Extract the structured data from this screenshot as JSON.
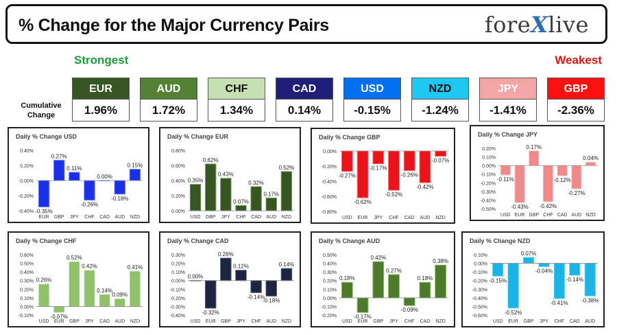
{
  "header": {
    "title": "% Change for the Major Currency Pairs",
    "logo_left": "fore",
    "logo_x": "X",
    "logo_right": "live"
  },
  "labels": {
    "strongest": "Strongest",
    "weakest": "Weakest",
    "cumulative_line1": "Cumulative",
    "cumulative_line2": "Change"
  },
  "tiles": [
    {
      "name": "EUR",
      "value": "1.96%",
      "bg": "#375623",
      "fg": "#ffffff"
    },
    {
      "name": "AUD",
      "value": "1.72%",
      "bg": "#548235",
      "fg": "#ffffff"
    },
    {
      "name": "CHF",
      "value": "1.34%",
      "bg": "#c6e0b4",
      "fg": "#111111"
    },
    {
      "name": "CAD",
      "value": "0.14%",
      "bg": "#1f1f7a",
      "fg": "#ffffff"
    },
    {
      "name": "USD",
      "value": "-0.15%",
      "bg": "#0070f0",
      "fg": "#ffffff"
    },
    {
      "name": "NZD",
      "value": "-1.24%",
      "bg": "#1fc8f0",
      "fg": "#111111"
    },
    {
      "name": "JPY",
      "value": "-1.41%",
      "bg": "#f4a6a6",
      "fg": "#ffffff"
    },
    {
      "name": "GBP",
      "value": "-2.36%",
      "bg": "#ff1010",
      "fg": "#ffffff"
    }
  ],
  "chart_data": [
    {
      "type": "bar",
      "title": "Daily % Change USD",
      "categories": [
        "EUR",
        "GBP",
        "JPY",
        "CHF",
        "CAD",
        "AUD",
        "NZD"
      ],
      "values": [
        -0.35,
        0.27,
        0.11,
        -0.26,
        0.0,
        -0.18,
        0.15
      ],
      "labels": [
        "-0.35%",
        "0.27%",
        "0.11%",
        "-0.26%",
        "0.00%",
        "-0.18%",
        "0.15%"
      ],
      "ylim": [
        -0.4,
        0.4
      ],
      "yticks": [
        "-0.40%",
        "-0.20%",
        "0.00%",
        "0.20%",
        "0.40%"
      ],
      "color": "#1a2fe8",
      "light": "#7a86ff"
    },
    {
      "type": "bar",
      "title": "Daily % Change EUR",
      "categories": [
        "USD",
        "GBP",
        "JPY",
        "CHF",
        "CAD",
        "AUD",
        "NZD"
      ],
      "values": [
        0.35,
        0.62,
        0.43,
        0.07,
        0.32,
        0.17,
        0.52
      ],
      "labels": [
        "0.35%",
        "0.62%",
        "0.43%",
        "0.07%",
        "0.32%",
        "0.17%",
        "0.52%"
      ],
      "ylim": [
        0.0,
        0.8
      ],
      "yticks": [
        "0.00%",
        "0.20%",
        "0.40%",
        "0.60%",
        "0.80%"
      ],
      "color": "#375623",
      "light": "#7fa862"
    },
    {
      "type": "bar",
      "title": "Daily % Change GBP",
      "categories": [
        "USD",
        "EUR",
        "JPY",
        "CHF",
        "CAD",
        "AUD",
        "NZD"
      ],
      "values": [
        -0.27,
        -0.62,
        -0.17,
        -0.52,
        -0.26,
        -0.42,
        -0.07
      ],
      "labels": [
        "-0.27%",
        "-0.62%",
        "-0.17%",
        "-0.52%",
        "-0.26%",
        "-0.42%",
        "-0.07%"
      ],
      "ylim": [
        -0.8,
        0.0
      ],
      "yticks": [
        "-0.80%",
        "-0.60%",
        "-0.40%",
        "-0.20%",
        "0.00%"
      ],
      "color": "#e8141a",
      "light": "#ff7a7a"
    },
    {
      "type": "bar",
      "title": "Daily % Change JPY",
      "categories": [
        "USD",
        "EUR",
        "GBP",
        "CHF",
        "CAD",
        "AUD",
        "NZD"
      ],
      "values": [
        -0.11,
        -0.43,
        0.17,
        -0.42,
        -0.12,
        -0.27,
        0.04
      ],
      "labels": [
        "-0.11%",
        "-0.43%",
        "0.17%",
        "-0.42%",
        "-0.12%",
        "-0.27%",
        "0.04%"
      ],
      "ylim": [
        -0.5,
        0.2
      ],
      "yticks": [
        "-0.50%",
        "-0.40%",
        "-0.30%",
        "-0.20%",
        "-0.10%",
        "0.00%",
        "0.10%",
        "0.20%"
      ],
      "color": "#f08a8a",
      "light": "#fcd2d2"
    },
    {
      "type": "bar",
      "title": "Daily % Change CHF",
      "categories": [
        "USD",
        "EUR",
        "GBP",
        "JPY",
        "CAD",
        "AUD",
        "NZD"
      ],
      "values": [
        0.26,
        -0.07,
        0.52,
        0.42,
        0.14,
        0.09,
        0.41
      ],
      "labels": [
        "0.26%",
        "-0.07%",
        "0.52%",
        "0.42%",
        "0.14%",
        "0.09%",
        "0.41%"
      ],
      "ylim": [
        -0.1,
        0.6
      ],
      "yticks": [
        "-0.10%",
        "0.00%",
        "0.10%",
        "0.20%",
        "0.30%",
        "0.40%",
        "0.50%",
        "0.60%"
      ],
      "color": "#8fc06a",
      "light": "#d8edc6"
    },
    {
      "type": "bar",
      "title": "Daily % Change CAD",
      "categories": [
        "USD",
        "EUR",
        "GBP",
        "JPY",
        "CHF",
        "AUD",
        "NZD"
      ],
      "values": [
        0.0,
        -0.32,
        0.26,
        0.12,
        -0.14,
        -0.18,
        0.14
      ],
      "labels": [
        "0.00%",
        "-0.32%",
        "0.26%",
        "0.12%",
        "-0.14%",
        "-0.18%",
        "0.14%"
      ],
      "ylim": [
        -0.4,
        0.3
      ],
      "yticks": [
        "-0.40%",
        "-0.30%",
        "-0.20%",
        "-0.10%",
        "0.00%",
        "0.10%",
        "0.20%",
        "0.30%"
      ],
      "color": "#1d2540",
      "light": "#55617f"
    },
    {
      "type": "bar",
      "title": "Daily % Change AUD",
      "categories": [
        "USD",
        "EUR",
        "GBP",
        "JPY",
        "CHF",
        "CAD",
        "NZD"
      ],
      "values": [
        0.18,
        -0.17,
        0.42,
        0.27,
        -0.09,
        0.18,
        0.38
      ],
      "labels": [
        "0.18%",
        "-0.17%",
        "0.42%",
        "0.27%",
        "-0.09%",
        "0.18%",
        "0.38%"
      ],
      "ylim": [
        -0.2,
        0.5
      ],
      "yticks": [
        "-0.20%",
        "-0.10%",
        "0.00%",
        "0.10%",
        "0.20%",
        "0.30%",
        "0.40%",
        "0.50%"
      ],
      "color": "#4e7a2c",
      "light": "#94be72"
    },
    {
      "type": "bar",
      "title": "Daily % Change NZD",
      "categories": [
        "USD",
        "EUR",
        "GBP",
        "JPY",
        "CHF",
        "CAD",
        "AUD"
      ],
      "values": [
        -0.15,
        -0.52,
        0.07,
        -0.04,
        -0.41,
        -0.14,
        -0.38
      ],
      "labels": [
        "-0.15%",
        "-0.52%",
        "0.07%",
        "-0.04%",
        "-0.41%",
        "-0.14%",
        "-0.38%"
      ],
      "ylim": [
        -0.6,
        0.1
      ],
      "yticks": [
        "-0.60%",
        "-0.50%",
        "-0.40%",
        "-0.30%",
        "-0.20%",
        "-0.10%",
        "0.00%",
        "0.10%"
      ],
      "color": "#1cb4e6",
      "light": "#8fe0f8"
    }
  ]
}
